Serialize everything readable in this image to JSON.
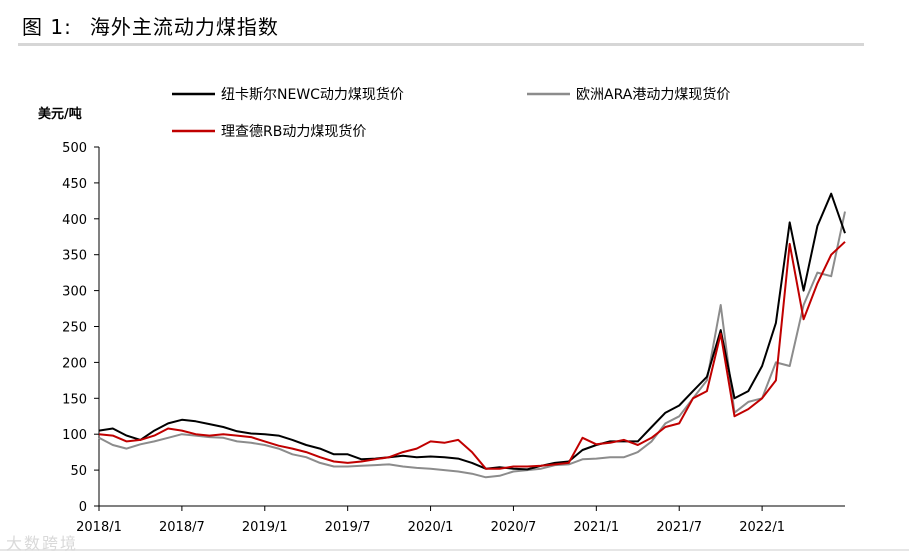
{
  "header": {
    "figure_number": "图 1:",
    "title": "海外主流动力煤指数"
  },
  "watermark": "大数跨境",
  "chart_data": {
    "type": "line",
    "ylabel": "美元/吨",
    "ylim": [
      0,
      500
    ],
    "yticks": [
      0,
      50,
      100,
      150,
      200,
      250,
      300,
      350,
      400,
      450,
      500
    ],
    "xlim": [
      "2018/1",
      "2022/7"
    ],
    "xticks": [
      "2018/1",
      "2018/7",
      "2019/1",
      "2019/7",
      "2020/1",
      "2020/7",
      "2021/1",
      "2021/7",
      "2022/1"
    ],
    "grid": false,
    "legend": "top",
    "series": [
      {
        "name": "纽卡斯尔NEWC动力煤现货价",
        "color": "#000000",
        "points": [
          [
            "2018/1",
            105
          ],
          [
            "2018/2",
            108
          ],
          [
            "2018/3",
            98
          ],
          [
            "2018/4",
            92
          ],
          [
            "2018/5",
            105
          ],
          [
            "2018/6",
            115
          ],
          [
            "2018/7",
            120
          ],
          [
            "2018/8",
            118
          ],
          [
            "2018/9",
            114
          ],
          [
            "2018/10",
            110
          ],
          [
            "2018/11",
            104
          ],
          [
            "2018/12",
            101
          ],
          [
            "2019/1",
            100
          ],
          [
            "2019/2",
            98
          ],
          [
            "2019/3",
            92
          ],
          [
            "2019/4",
            85
          ],
          [
            "2019/5",
            80
          ],
          [
            "2019/6",
            72
          ],
          [
            "2019/7",
            72
          ],
          [
            "2019/8",
            65
          ],
          [
            "2019/9",
            66
          ],
          [
            "2019/10",
            68
          ],
          [
            "2019/11",
            70
          ],
          [
            "2019/12",
            68
          ],
          [
            "2020/1",
            69
          ],
          [
            "2020/2",
            68
          ],
          [
            "2020/3",
            66
          ],
          [
            "2020/4",
            60
          ],
          [
            "2020/5",
            52
          ],
          [
            "2020/6",
            54
          ],
          [
            "2020/7",
            52
          ],
          [
            "2020/8",
            51
          ],
          [
            "2020/9",
            56
          ],
          [
            "2020/10",
            60
          ],
          [
            "2020/11",
            62
          ],
          [
            "2020/12",
            78
          ],
          [
            "2021/1",
            85
          ],
          [
            "2021/2",
            90
          ],
          [
            "2021/3",
            90
          ],
          [
            "2021/4",
            90
          ],
          [
            "2021/5",
            110
          ],
          [
            "2021/6",
            130
          ],
          [
            "2021/7",
            140
          ],
          [
            "2021/8",
            160
          ],
          [
            "2021/9",
            180
          ],
          [
            "2021/10",
            245
          ],
          [
            "2021/11",
            150
          ],
          [
            "2021/12",
            160
          ],
          [
            "2022/1",
            195
          ],
          [
            "2022/2",
            255
          ],
          [
            "2022/3",
            395
          ],
          [
            "2022/4",
            300
          ],
          [
            "2022/5",
            390
          ],
          [
            "2022/6",
            435
          ],
          [
            "2022/7",
            380
          ]
        ]
      },
      {
        "name": "欧洲ARA港动力煤现货价",
        "color": "#8c8c8c",
        "points": [
          [
            "2018/1",
            95
          ],
          [
            "2018/2",
            85
          ],
          [
            "2018/3",
            80
          ],
          [
            "2018/4",
            86
          ],
          [
            "2018/5",
            90
          ],
          [
            "2018/6",
            95
          ],
          [
            "2018/7",
            100
          ],
          [
            "2018/8",
            98
          ],
          [
            "2018/9",
            96
          ],
          [
            "2018/10",
            95
          ],
          [
            "2018/11",
            90
          ],
          [
            "2018/12",
            88
          ],
          [
            "2019/1",
            85
          ],
          [
            "2019/2",
            80
          ],
          [
            "2019/3",
            72
          ],
          [
            "2019/4",
            68
          ],
          [
            "2019/5",
            60
          ],
          [
            "2019/6",
            55
          ],
          [
            "2019/7",
            55
          ],
          [
            "2019/8",
            56
          ],
          [
            "2019/9",
            57
          ],
          [
            "2019/10",
            58
          ],
          [
            "2019/11",
            55
          ],
          [
            "2019/12",
            53
          ],
          [
            "2020/1",
            52
          ],
          [
            "2020/2",
            50
          ],
          [
            "2020/3",
            48
          ],
          [
            "2020/4",
            45
          ],
          [
            "2020/5",
            40
          ],
          [
            "2020/6",
            42
          ],
          [
            "2020/7",
            48
          ],
          [
            "2020/8",
            50
          ],
          [
            "2020/9",
            52
          ],
          [
            "2020/10",
            57
          ],
          [
            "2020/11",
            58
          ],
          [
            "2020/12",
            65
          ],
          [
            "2021/1",
            66
          ],
          [
            "2021/2",
            68
          ],
          [
            "2021/3",
            68
          ],
          [
            "2021/4",
            75
          ],
          [
            "2021/5",
            90
          ],
          [
            "2021/6",
            115
          ],
          [
            "2021/7",
            125
          ],
          [
            "2021/8",
            150
          ],
          [
            "2021/9",
            175
          ],
          [
            "2021/10",
            280
          ],
          [
            "2021/11",
            130
          ],
          [
            "2021/12",
            145
          ],
          [
            "2022/1",
            150
          ],
          [
            "2022/2",
            200
          ],
          [
            "2022/3",
            195
          ],
          [
            "2022/4",
            280
          ],
          [
            "2022/5",
            325
          ],
          [
            "2022/6",
            320
          ],
          [
            "2022/7",
            410
          ]
        ]
      },
      {
        "name": "理查德RB动力煤现货价",
        "color": "#c00000",
        "points": [
          [
            "2018/1",
            100
          ],
          [
            "2018/2",
            98
          ],
          [
            "2018/3",
            90
          ],
          [
            "2018/4",
            92
          ],
          [
            "2018/5",
            98
          ],
          [
            "2018/6",
            108
          ],
          [
            "2018/7",
            105
          ],
          [
            "2018/8",
            100
          ],
          [
            "2018/9",
            98
          ],
          [
            "2018/10",
            100
          ],
          [
            "2018/11",
            98
          ],
          [
            "2018/12",
            96
          ],
          [
            "2019/1",
            90
          ],
          [
            "2019/2",
            84
          ],
          [
            "2019/3",
            80
          ],
          [
            "2019/4",
            75
          ],
          [
            "2019/5",
            68
          ],
          [
            "2019/6",
            62
          ],
          [
            "2019/7",
            60
          ],
          [
            "2019/8",
            62
          ],
          [
            "2019/9",
            65
          ],
          [
            "2019/10",
            68
          ],
          [
            "2019/11",
            75
          ],
          [
            "2019/12",
            80
          ],
          [
            "2020/1",
            90
          ],
          [
            "2020/2",
            88
          ],
          [
            "2020/3",
            92
          ],
          [
            "2020/4",
            75
          ],
          [
            "2020/5",
            52
          ],
          [
            "2020/6",
            52
          ],
          [
            "2020/7",
            55
          ],
          [
            "2020/8",
            55
          ],
          [
            "2020/9",
            56
          ],
          [
            "2020/10",
            58
          ],
          [
            "2020/11",
            60
          ],
          [
            "2020/12",
            95
          ],
          [
            "2021/1",
            86
          ],
          [
            "2021/2",
            88
          ],
          [
            "2021/3",
            92
          ],
          [
            "2021/4",
            85
          ],
          [
            "2021/5",
            95
          ],
          [
            "2021/6",
            110
          ],
          [
            "2021/7",
            115
          ],
          [
            "2021/8",
            150
          ],
          [
            "2021/9",
            160
          ],
          [
            "2021/10",
            240
          ],
          [
            "2021/11",
            125
          ],
          [
            "2021/12",
            135
          ],
          [
            "2022/1",
            150
          ],
          [
            "2022/2",
            175
          ],
          [
            "2022/3",
            365
          ],
          [
            "2022/4",
            260
          ],
          [
            "2022/5",
            310
          ],
          [
            "2022/6",
            350
          ],
          [
            "2022/7",
            368
          ]
        ]
      }
    ]
  }
}
